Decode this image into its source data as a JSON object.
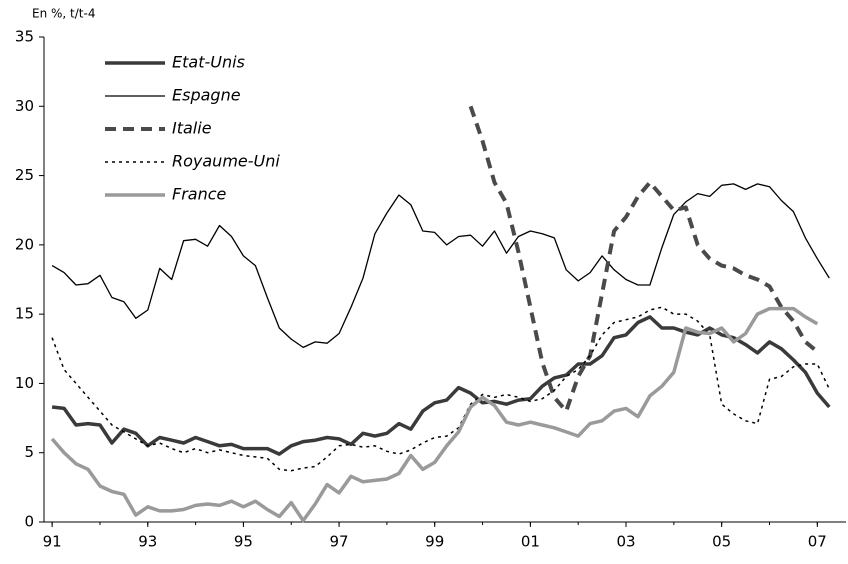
{
  "chart_data": {
    "type": "line",
    "y_label": "En %, t/t-4",
    "x": [
      1991,
      1991.25,
      1991.5,
      1991.75,
      1992,
      1992.25,
      1992.5,
      1992.75,
      1993,
      1993.25,
      1993.5,
      1993.75,
      1994,
      1994.25,
      1994.5,
      1994.75,
      1995,
      1995.25,
      1995.5,
      1995.75,
      1996,
      1996.25,
      1996.5,
      1996.75,
      1997,
      1997.25,
      1997.5,
      1997.75,
      1998,
      1998.25,
      1998.5,
      1998.75,
      1999,
      1999.25,
      1999.5,
      1999.75,
      2000,
      2000.25,
      2000.5,
      2000.75,
      2001,
      2001.25,
      2001.5,
      2001.75,
      2002,
      2002.25,
      2002.5,
      2002.75,
      2003,
      2003.25,
      2003.5,
      2003.75,
      2004,
      2004.25,
      2004.5,
      2004.75,
      2005,
      2005.25,
      2005.5,
      2005.75,
      2006,
      2006.25,
      2006.5,
      2006.75,
      2007,
      2007.25
    ],
    "series": [
      {
        "name": "Etat-Unis",
        "color": "#3a3a3a",
        "style": "solid",
        "width": 3.5,
        "values": [
          8.3,
          8.2,
          7.0,
          7.1,
          7.0,
          5.7,
          6.7,
          6.4,
          5.5,
          6.1,
          5.9,
          5.7,
          6.1,
          5.8,
          5.5,
          5.6,
          5.3,
          5.3,
          5.3,
          4.9,
          5.5,
          5.8,
          5.9,
          6.1,
          6.0,
          5.6,
          6.4,
          6.2,
          6.4,
          7.1,
          6.7,
          8.0,
          8.6,
          8.8,
          9.7,
          9.3,
          8.6,
          8.7,
          8.5,
          8.8,
          8.9,
          9.8,
          10.4,
          10.6,
          11.4,
          11.4,
          12.0,
          13.3,
          13.5,
          14.4,
          14.8,
          14.0,
          14.0,
          13.7,
          13.5,
          14.0,
          13.5,
          13.3,
          12.8,
          12.2,
          13.0,
          12.5,
          11.7,
          10.8,
          9.3,
          8.3
        ]
      },
      {
        "name": "Espagne",
        "color": "#000000",
        "style": "solid",
        "width": 1.3,
        "values": [
          18.5,
          18.0,
          17.1,
          17.2,
          17.8,
          16.2,
          15.9,
          14.7,
          15.3,
          18.3,
          17.5,
          20.3,
          20.4,
          19.9,
          21.4,
          20.6,
          19.2,
          18.5,
          16.2,
          14.0,
          13.2,
          12.6,
          13.0,
          12.9,
          13.6,
          15.5,
          17.6,
          20.8,
          22.3,
          23.6,
          22.9,
          21.0,
          20.9,
          20.0,
          20.6,
          20.7,
          19.9,
          21.0,
          19.4,
          20.6,
          21.0,
          20.8,
          20.5,
          18.2,
          17.4,
          18.0,
          19.2,
          18.2,
          17.5,
          17.1,
          17.1,
          19.8,
          22.2,
          23.1,
          23.7,
          23.5,
          24.3,
          24.4,
          24.0,
          24.4,
          24.2,
          23.2,
          22.4,
          20.5,
          19.0,
          17.6
        ]
      },
      {
        "name": "Italie",
        "color": "#4a4a4a",
        "style": "dashed",
        "width": 4,
        "values": [
          null,
          null,
          null,
          null,
          null,
          null,
          null,
          null,
          null,
          null,
          null,
          null,
          null,
          null,
          null,
          null,
          null,
          null,
          null,
          null,
          null,
          null,
          null,
          null,
          null,
          null,
          null,
          null,
          null,
          null,
          null,
          null,
          null,
          null,
          null,
          30.0,
          27.5,
          24.5,
          23.0,
          19.5,
          15.5,
          11.5,
          9.0,
          8.0,
          10.5,
          12.0,
          16.5,
          21.0,
          22.0,
          23.5,
          24.5,
          23.5,
          22.5,
          22.7,
          20.0,
          19.0,
          18.5,
          18.3,
          17.8,
          17.5,
          17.0,
          15.5,
          14.5,
          13.0,
          12.3,
          null
        ]
      },
      {
        "name": "Royaume-Uni",
        "color": "#000000",
        "style": "dotted",
        "width": 1.5,
        "values": [
          13.3,
          11.0,
          10.0,
          9.0,
          8.0,
          7.0,
          6.5,
          6.0,
          5.5,
          5.7,
          5.3,
          5.0,
          5.3,
          5.0,
          5.2,
          5.0,
          4.8,
          4.7,
          4.6,
          3.8,
          3.7,
          3.9,
          4.0,
          4.7,
          5.5,
          5.6,
          5.4,
          5.5,
          5.1,
          4.9,
          5.2,
          5.7,
          6.1,
          6.2,
          6.8,
          8.5,
          9.2,
          9.0,
          9.2,
          9.0,
          8.7,
          8.9,
          9.5,
          10.5,
          11.0,
          12.0,
          13.5,
          14.4,
          14.6,
          14.8,
          15.3,
          15.5,
          15.0,
          15.0,
          14.5,
          13.5,
          8.5,
          7.8,
          7.3,
          7.1,
          10.3,
          10.5,
          11.2,
          11.4,
          11.4,
          9.6
        ]
      },
      {
        "name": "France",
        "color": "#9a9a9a",
        "style": "solid",
        "width": 3.5,
        "values": [
          6.0,
          5.0,
          4.2,
          3.8,
          2.6,
          2.2,
          2.0,
          0.5,
          1.1,
          0.8,
          0.8,
          0.9,
          1.2,
          1.3,
          1.2,
          1.5,
          1.1,
          1.5,
          0.9,
          0.4,
          1.4,
          0.1,
          1.3,
          2.7,
          2.1,
          3.3,
          2.9,
          3.0,
          3.1,
          3.5,
          4.8,
          3.8,
          4.3,
          5.5,
          6.5,
          8.3,
          9.0,
          8.4,
          7.2,
          7.0,
          7.2,
          7.0,
          6.8,
          6.5,
          6.2,
          7.1,
          7.3,
          8.0,
          8.2,
          7.6,
          9.1,
          9.8,
          10.8,
          14.0,
          13.7,
          13.6,
          14.0,
          13.0,
          13.6,
          15.0,
          15.4,
          15.4,
          15.4,
          14.8,
          14.3,
          null
        ]
      }
    ],
    "xlim": [
      1990.83,
      2007.6
    ],
    "xticks": [
      {
        "value": 1991,
        "label": "91"
      },
      {
        "value": 1993,
        "label": "93"
      },
      {
        "value": 1995,
        "label": "95"
      },
      {
        "value": 1997,
        "label": "97"
      },
      {
        "value": 1999,
        "label": "99"
      },
      {
        "value": 2001,
        "label": "01"
      },
      {
        "value": 2003,
        "label": "03"
      },
      {
        "value": 2005,
        "label": "05"
      },
      {
        "value": 2007,
        "label": "07"
      }
    ],
    "ylim": [
      0,
      35
    ],
    "yticks": [
      0,
      5,
      10,
      15,
      20,
      25,
      30,
      35
    ],
    "grid": false
  }
}
